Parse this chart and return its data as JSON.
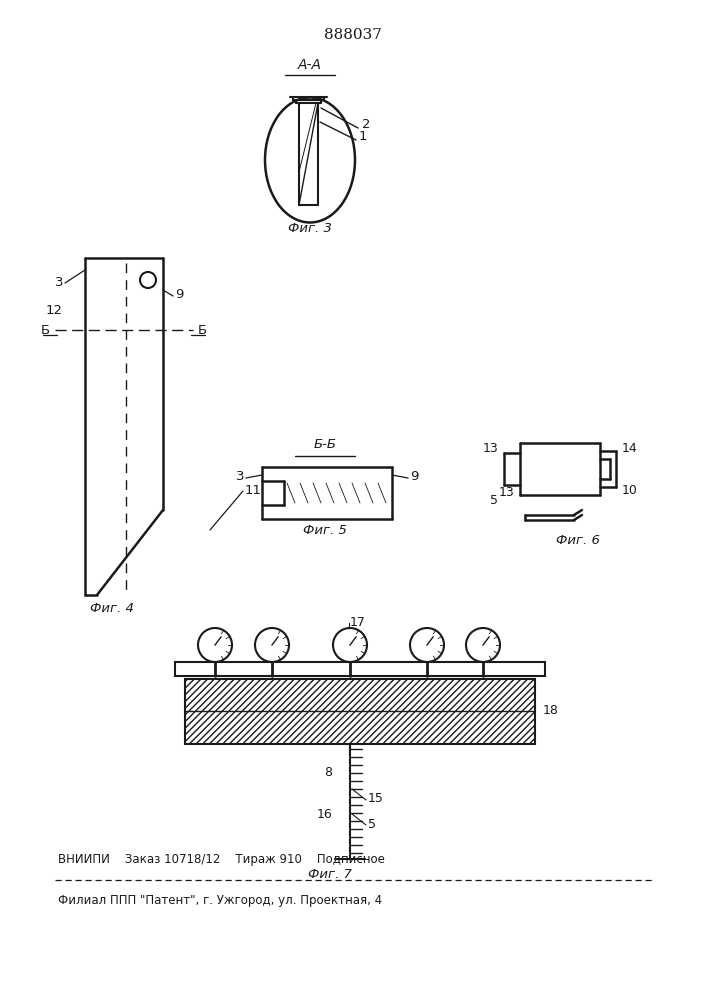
{
  "bg_color": "#ffffff",
  "lc": "#1a1a1a",
  "patent_number": "888037",
  "footer_line1": "ВНИИПИ    Заказ 10718/12    Тираж 910    Подписное",
  "footer_line2": "Филиал ППП \"Патент\", г. Ужгород, ул. Проектная, 4"
}
